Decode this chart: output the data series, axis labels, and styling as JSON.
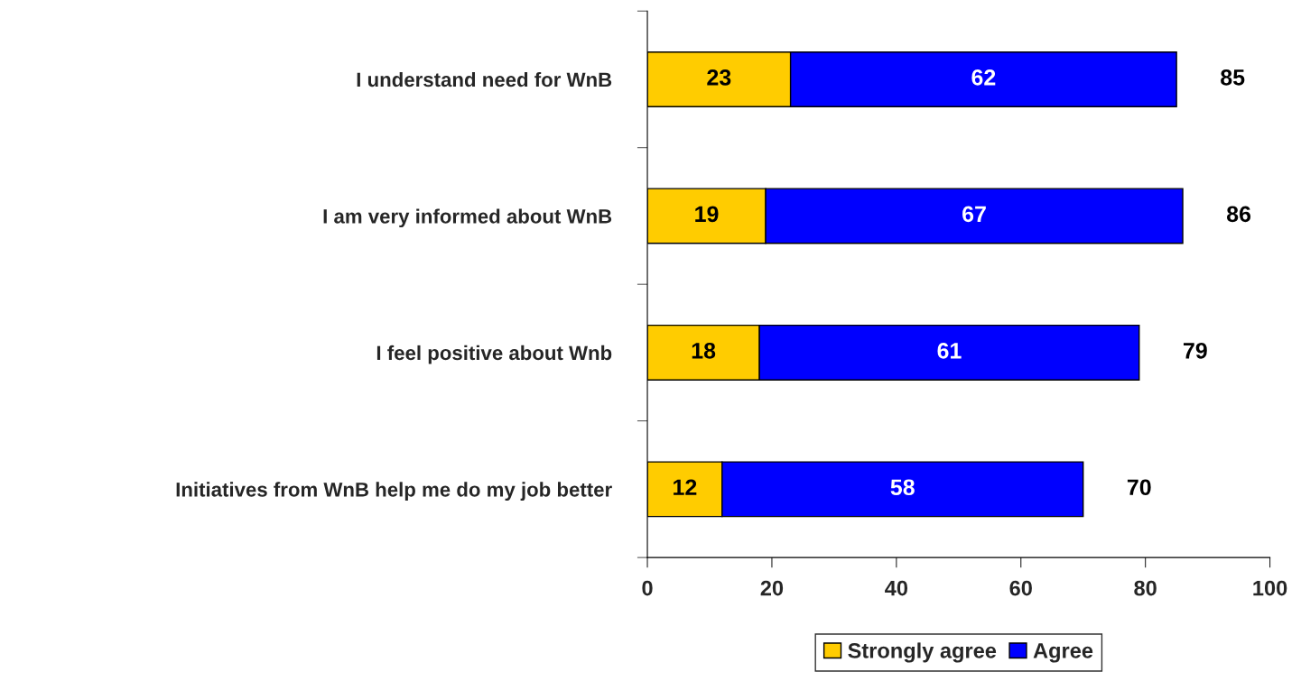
{
  "chart_data": {
    "type": "bar",
    "orientation": "horizontal",
    "stacked": true,
    "categories": [
      "I understand need for WnB",
      "I am very informed about WnB",
      "I feel positive about Wnb",
      "Initiatives from WnB help me do my job better"
    ],
    "series": [
      {
        "name": "Strongly agree",
        "color": "#ffcc00",
        "values": [
          23,
          19,
          18,
          12
        ]
      },
      {
        "name": "Agree",
        "color": "#0000ff",
        "values": [
          62,
          67,
          61,
          58
        ]
      }
    ],
    "totals": [
      "85",
      "86",
      "79",
      "70"
    ],
    "data_labels": true,
    "xlim": [
      0,
      100
    ],
    "xticks": [
      0,
      20,
      40,
      60,
      80,
      100
    ],
    "grid": false,
    "legend": "bottom"
  }
}
